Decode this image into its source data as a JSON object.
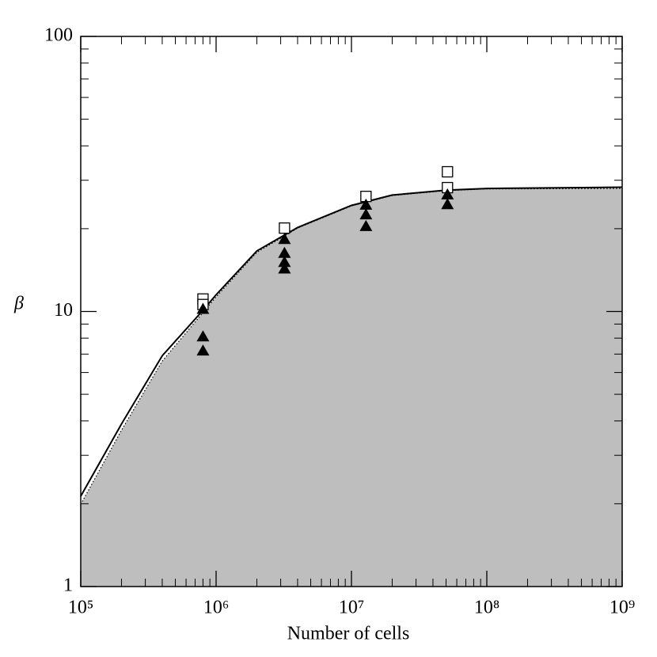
{
  "chart_data": {
    "type": "line",
    "x_label": "Number of cells",
    "y_label": "β",
    "xscale": "log",
    "yscale": "log",
    "xlim": [
      100000,
      1000000000
    ],
    "ylim": [
      1,
      100
    ],
    "xticks": [
      {
        "value": 100000,
        "label": "10⁵"
      },
      {
        "value": 1000000,
        "label": "10⁶"
      },
      {
        "value": 10000000,
        "label": "10⁷"
      },
      {
        "value": 100000000,
        "label": "10⁸"
      },
      {
        "value": 1000000000,
        "label": "10⁹"
      }
    ],
    "yticks": [
      1,
      10,
      100
    ],
    "minor_ticks": true,
    "series": [
      {
        "mode": "line",
        "style": "dotted",
        "fill": "#bebebe",
        "color": "#000000",
        "x": [
          100000,
          200000,
          400000,
          800000,
          1000000,
          2000000,
          4000000,
          10000000,
          20000000,
          50000000,
          100000000,
          1000000000
        ],
        "values": [
          1.99,
          3.7,
          6.6,
          9.9,
          11.3,
          16.4,
          20.1,
          24.2,
          26.4,
          27.5,
          27.9,
          28.0
        ]
      },
      {
        "mode": "line",
        "style": "solid",
        "color": "#000000",
        "x": [
          100000,
          200000,
          400000,
          800000,
          1000000,
          2000000,
          4000000,
          10000000,
          20000000,
          50000000,
          100000000,
          1000000000
        ],
        "values": [
          2.13,
          3.9,
          6.9,
          10.1,
          11.5,
          16.6,
          20.2,
          24.3,
          26.5,
          27.6,
          28.0,
          28.3
        ]
      },
      {
        "mode": "markers",
        "marker": "square",
        "color": "#000000",
        "x": [
          800000,
          800000,
          3200000,
          12800000,
          51200000,
          51200000
        ],
        "values": [
          11.1,
          10.6,
          20.1,
          26.2,
          32.2,
          28.2
        ]
      },
      {
        "mode": "markers",
        "marker": "triangle",
        "color": "#000000",
        "x": [
          800000,
          800000,
          800000,
          3200000,
          3200000,
          3200000,
          3200000,
          12800000,
          12800000,
          12800000,
          51200000,
          51200000
        ],
        "values": [
          10.2,
          8.1,
          7.2,
          18.3,
          16.3,
          15.1,
          14.3,
          24.4,
          22.5,
          20.4,
          26.6,
          24.5
        ]
      }
    ]
  }
}
